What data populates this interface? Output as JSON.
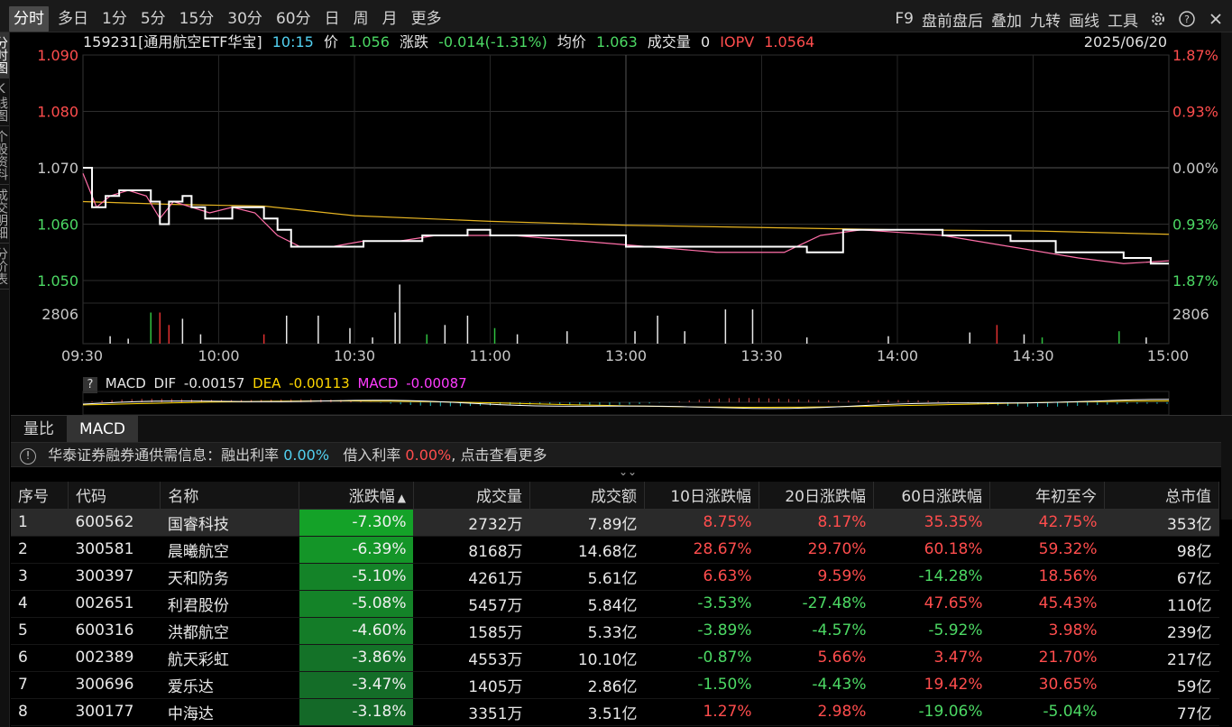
{
  "toolbar": {
    "period_tabs": [
      "分时",
      "多日",
      "1分",
      "5分",
      "15分",
      "30分",
      "60分",
      "日",
      "周",
      "月",
      "更多"
    ],
    "active_tab": "分时",
    "right_tools": [
      "F9",
      "盘前盘后",
      "叠加",
      "九转",
      "画线",
      "工具"
    ]
  },
  "left_tabs": [
    "分时图",
    "K线图",
    "个股资料",
    "成交明细",
    "分价表"
  ],
  "info": {
    "code_name": "159231[通用航空ETF华宝]",
    "time": "10:15",
    "price_label": "价",
    "price": "1.056",
    "change_label": "涨跌",
    "change": "-0.014(-1.31%)",
    "avg_label": "均价",
    "avg": "1.063",
    "volume_label": "成交量",
    "volume": "0",
    "iopv_label": "IOPV",
    "iopv": "1.0564",
    "date": "2025/06/20"
  },
  "chart_data": [
    {
      "type": "line",
      "title": "",
      "x_ticks": [
        "09:30",
        "10:00",
        "10:30",
        "11:00",
        "13:00",
        "13:30",
        "14:00",
        "14:30",
        "15:00"
      ],
      "y_ticks_left": [
        "1.090",
        "1.080",
        "1.070",
        "1.060",
        "1.050"
      ],
      "y_ticks_right": [
        "1.87%",
        "0.93%",
        "0.00%",
        "0.93%",
        "1.87%"
      ],
      "ylim": [
        1.05,
        1.09
      ],
      "prev_close": 1.07,
      "volume_max_label": "2806",
      "series": [
        {
          "name": "价",
          "color": "#ffffff",
          "points": [
            [
              0,
              1.07
            ],
            [
              2,
              1.063
            ],
            [
              5,
              1.065
            ],
            [
              8,
              1.066
            ],
            [
              12,
              1.066
            ],
            [
              15,
              1.064
            ],
            [
              17,
              1.06
            ],
            [
              19,
              1.064
            ],
            [
              22,
              1.065
            ],
            [
              24,
              1.063
            ],
            [
              27,
              1.061
            ],
            [
              30,
              1.061
            ],
            [
              33,
              1.063
            ],
            [
              36,
              1.063
            ],
            [
              40,
              1.061
            ],
            [
              43,
              1.059
            ],
            [
              46,
              1.056
            ],
            [
              55,
              1.056
            ],
            [
              62,
              1.057
            ],
            [
              70,
              1.057
            ],
            [
              75,
              1.058
            ],
            [
              80,
              1.058
            ],
            [
              85,
              1.059
            ],
            [
              90,
              1.058
            ],
            [
              95,
              1.058
            ],
            [
              110,
              1.058
            ],
            [
              120,
              1.056
            ],
            [
              140,
              1.056
            ],
            [
              150,
              1.056
            ],
            [
              160,
              1.055
            ],
            [
              168,
              1.059
            ],
            [
              180,
              1.059
            ],
            [
              190,
              1.058
            ],
            [
              205,
              1.057
            ],
            [
              215,
              1.055
            ],
            [
              220,
              1.055
            ],
            [
              230,
              1.054
            ],
            [
              236,
              1.053
            ],
            [
              240,
              1.053
            ]
          ]
        },
        {
          "name": "均价",
          "color": "#e6b422",
          "points": [
            [
              0,
              1.064
            ],
            [
              20,
              1.0635
            ],
            [
              40,
              1.0632
            ],
            [
              60,
              1.0615
            ],
            [
              90,
              1.0605
            ],
            [
              120,
              1.0598
            ],
            [
              150,
              1.0594
            ],
            [
              180,
              1.059
            ],
            [
              210,
              1.0588
            ],
            [
              240,
              1.0582
            ]
          ]
        },
        {
          "name": "IOPV",
          "color": "#ff6fa8",
          "points": [
            [
              0,
              1.069
            ],
            [
              3,
              1.063
            ],
            [
              6,
              1.065
            ],
            [
              10,
              1.066
            ],
            [
              14,
              1.065
            ],
            [
              17,
              1.061
            ],
            [
              20,
              1.064
            ],
            [
              24,
              1.063
            ],
            [
              28,
              1.062
            ],
            [
              33,
              1.063
            ],
            [
              38,
              1.062
            ],
            [
              43,
              1.058
            ],
            [
              48,
              1.056
            ],
            [
              55,
              1.056
            ],
            [
              62,
              1.057
            ],
            [
              70,
              1.057
            ],
            [
              78,
              1.058
            ],
            [
              86,
              1.058
            ],
            [
              95,
              1.058
            ],
            [
              110,
              1.057
            ],
            [
              125,
              1.056
            ],
            [
              140,
              1.055
            ],
            [
              155,
              1.055
            ],
            [
              163,
              1.058
            ],
            [
              172,
              1.059
            ],
            [
              190,
              1.058
            ],
            [
              205,
              1.056
            ],
            [
              220,
              1.054
            ],
            [
              230,
              1.053
            ],
            [
              240,
              1.0535
            ]
          ]
        }
      ],
      "volume_bars": [
        [
          6,
          0.12,
          "w"
        ],
        [
          10,
          0.08,
          "w"
        ],
        [
          15,
          0.5,
          "g"
        ],
        [
          17,
          0.5,
          "r"
        ],
        [
          19,
          0.3,
          "r"
        ],
        [
          22,
          0.4,
          "w"
        ],
        [
          26,
          0.15,
          "w"
        ],
        [
          40,
          0.15,
          "r"
        ],
        [
          45,
          0.45,
          "w"
        ],
        [
          52,
          0.45,
          "w"
        ],
        [
          59,
          0.25,
          "w"
        ],
        [
          64,
          0.1,
          "w"
        ],
        [
          69,
          0.5,
          "w"
        ],
        [
          70,
          0.95,
          "w"
        ],
        [
          76,
          0.15,
          "g"
        ],
        [
          80,
          0.3,
          "w"
        ],
        [
          85,
          0.45,
          "w"
        ],
        [
          91,
          0.25,
          "g"
        ],
        [
          96,
          0.15,
          "w"
        ],
        [
          107,
          0.2,
          "w"
        ],
        [
          122,
          0.2,
          "w"
        ],
        [
          127,
          0.45,
          "w"
        ],
        [
          133,
          0.2,
          "w"
        ],
        [
          142,
          0.55,
          "w"
        ],
        [
          148,
          0.55,
          "w"
        ],
        [
          160,
          0.1,
          "w"
        ],
        [
          178,
          0.12,
          "w"
        ],
        [
          196,
          0.18,
          "w"
        ],
        [
          202,
          0.3,
          "r"
        ],
        [
          208,
          0.15,
          "w"
        ],
        [
          212,
          0.1,
          "g"
        ],
        [
          229,
          0.2,
          "g"
        ],
        [
          235,
          0.1,
          "w"
        ]
      ]
    },
    {
      "type": "line",
      "title": "MACD",
      "values": {
        "DIF": "-0.00157",
        "DEA": "-0.00113",
        "MACD": "-0.00087"
      },
      "series": [
        {
          "name": "DIF",
          "color": "#ffffff"
        },
        {
          "name": "DEA",
          "color": "#ffd700"
        }
      ]
    }
  ],
  "macd": {
    "label": "MACD",
    "dif_label": "DIF",
    "dif": "-0.00157",
    "dea_label": "DEA",
    "dea": "-0.00113",
    "macd_label": "MACD",
    "macd": "-0.00087"
  },
  "sub_tabs": [
    "量比",
    "MACD"
  ],
  "sub_active": "MACD",
  "notice": {
    "text1": "华泰证券融券通供需信息：融出利率",
    "rate1": "0.00%",
    "text2": "借入利率",
    "rate2": "0.00%",
    "text3": "点击查看更多"
  },
  "table": {
    "headers": [
      "序号",
      "代码",
      "名称",
      "涨跌幅",
      "成交量",
      "成交额",
      "10日涨跌幅",
      "20日涨跌幅",
      "60日涨跌幅",
      "年初至今",
      "总市值"
    ],
    "sort_arrow": "▲",
    "rows": [
      [
        "1",
        "600562",
        "国睿科技",
        "-7.30%",
        "2732万",
        "7.89亿",
        "8.75%",
        "8.17%",
        "35.35%",
        "42.75%",
        "353亿"
      ],
      [
        "2",
        "300581",
        "晨曦航空",
        "-6.39%",
        "8168万",
        "14.68亿",
        "28.67%",
        "29.70%",
        "60.18%",
        "59.32%",
        "98亿"
      ],
      [
        "3",
        "300397",
        "天和防务",
        "-5.10%",
        "4261万",
        "5.61亿",
        "6.63%",
        "9.59%",
        "-14.28%",
        "18.56%",
        "67亿"
      ],
      [
        "4",
        "002651",
        "利君股份",
        "-5.08%",
        "5457万",
        "5.84亿",
        "-3.53%",
        "-27.48%",
        "47.65%",
        "45.43%",
        "110亿"
      ],
      [
        "5",
        "600316",
        "洪都航空",
        "-4.60%",
        "1585万",
        "5.33亿",
        "-3.89%",
        "-4.57%",
        "-5.92%",
        "3.98%",
        "239亿"
      ],
      [
        "6",
        "002389",
        "航天彩虹",
        "-3.86%",
        "4553万",
        "10.10亿",
        "-0.87%",
        "5.66%",
        "3.47%",
        "21.70%",
        "217亿"
      ],
      [
        "7",
        "300696",
        "爱乐达",
        "-3.47%",
        "1405万",
        "2.86亿",
        "-1.50%",
        "-4.43%",
        "19.42%",
        "30.65%",
        "59亿"
      ],
      [
        "8",
        "300177",
        "中海达",
        "-3.18%",
        "3351万",
        "3.51亿",
        "1.27%",
        "2.98%",
        "-19.06%",
        "-5.04%",
        "77亿"
      ]
    ]
  }
}
